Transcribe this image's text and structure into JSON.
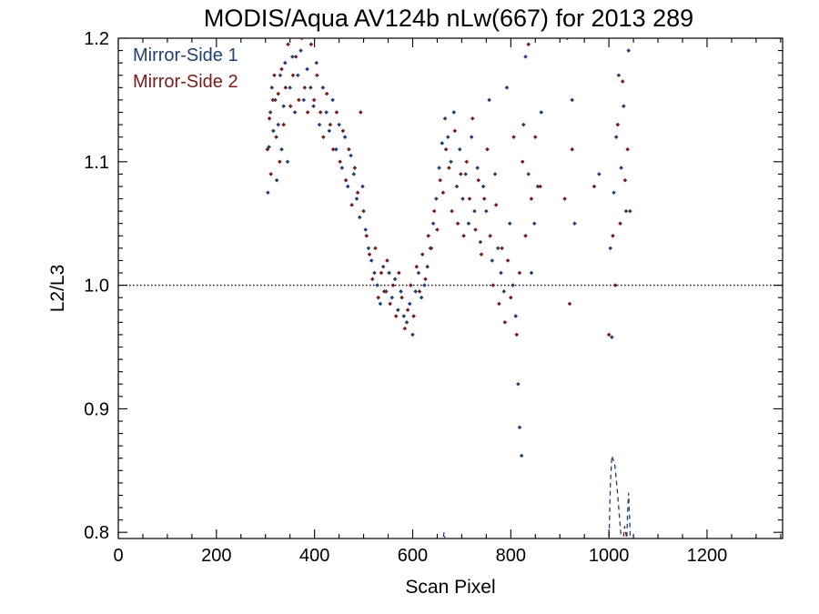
{
  "chart_data": {
    "type": "scatter",
    "title": "MODIS/Aqua AV124b nLw(667) for 2013 289",
    "xlabel": "Scan Pixel",
    "ylabel": "L2/L3",
    "xlim": [
      0,
      1354
    ],
    "ylim": [
      0.795,
      1.2
    ],
    "x_ticks": [
      0,
      200,
      400,
      600,
      800,
      1000,
      1200
    ],
    "x_tick_labels": [
      "0",
      "200",
      "400",
      "600",
      "800",
      "1000",
      "1200"
    ],
    "y_ticks": [
      0.8,
      0.9,
      1.0,
      1.1,
      1.2
    ],
    "y_tick_labels": [
      "0.8",
      "0.9",
      "1.0",
      "1.1",
      "1.2"
    ],
    "reference_line": {
      "y": 1.0,
      "style": "dotted"
    },
    "legend_position": "top-left",
    "series": [
      {
        "name": "Mirror-Side 1",
        "color": "#1f3f7a",
        "points": [
          [
            305,
            1.075
          ],
          [
            307,
            1.112
          ],
          [
            310,
            1.14
          ],
          [
            313,
            1.16
          ],
          [
            316,
            1.125
          ],
          [
            320,
            1.15
          ],
          [
            323,
            1.085
          ],
          [
            326,
            1.13
          ],
          [
            330,
            1.17
          ],
          [
            333,
            1.11
          ],
          [
            337,
            1.145
          ],
          [
            340,
            1.18
          ],
          [
            345,
            1.1
          ],
          [
            350,
            1.16
          ],
          [
            355,
            1.185
          ],
          [
            360,
            1.14
          ],
          [
            366,
            1.17
          ],
          [
            372,
            1.19
          ],
          [
            378,
            1.15
          ],
          [
            385,
            1.175
          ],
          [
            392,
            1.16
          ],
          [
            398,
            1.145
          ],
          [
            404,
            1.18
          ],
          [
            410,
            1.13
          ],
          [
            417,
            1.16
          ],
          [
            424,
            1.14
          ],
          [
            430,
            1.125
          ],
          [
            437,
            1.15
          ],
          [
            444,
            1.11
          ],
          [
            450,
            1.13
          ],
          [
            456,
            1.095
          ],
          [
            462,
            1.12
          ],
          [
            468,
            1.08
          ],
          [
            474,
            1.105
          ],
          [
            480,
            1.09
          ],
          [
            486,
            1.07
          ],
          [
            492,
            1.055
          ],
          [
            498,
            1.08
          ],
          [
            504,
            1.045
          ],
          [
            510,
            1.03
          ],
          [
            516,
            1.02
          ],
          [
            522,
            1.01
          ],
          [
            528,
            1.0
          ],
          [
            534,
            0.985
          ],
          [
            540,
            1.015
          ],
          [
            546,
            0.995
          ],
          [
            552,
            1.01
          ],
          [
            558,
            0.99
          ],
          [
            564,
            1.005
          ],
          [
            570,
            0.98
          ],
          [
            576,
            0.995
          ],
          [
            582,
            0.975
          ],
          [
            588,
            0.97
          ],
          [
            594,
            0.985
          ],
          [
            600,
            0.96
          ],
          [
            606,
            0.995
          ],
          [
            612,
            1.01
          ],
          [
            618,
            0.99
          ],
          [
            624,
            1.0
          ],
          [
            630,
            1.015
          ],
          [
            636,
            1.03
          ],
          [
            642,
            1.05
          ],
          [
            648,
            1.07
          ],
          [
            654,
            1.095
          ],
          [
            660,
            1.115
          ],
          [
            666,
            1.135
          ],
          [
            672,
            1.12
          ],
          [
            678,
            1.1
          ],
          [
            684,
            1.14
          ],
          [
            690,
            1.08
          ],
          [
            696,
            1.11
          ],
          [
            702,
            1.07
          ],
          [
            708,
            1.09
          ],
          [
            714,
            1.05
          ],
          [
            720,
            1.12
          ],
          [
            726,
            1.06
          ],
          [
            732,
            1.095
          ],
          [
            738,
            1.035
          ],
          [
            744,
            1.08
          ],
          [
            750,
            1.06
          ],
          [
            756,
            1.15
          ],
          [
            762,
            1.02
          ],
          [
            768,
            1.09
          ],
          [
            774,
            1.03
          ],
          [
            780,
            1.01
          ],
          [
            786,
            0.995
          ],
          [
            792,
            1.16
          ],
          [
            798,
            1.05
          ],
          [
            804,
            1.0
          ],
          [
            810,
            0.975
          ],
          [
            815,
            0.92
          ],
          [
            818,
            0.885
          ],
          [
            822,
            0.862
          ],
          [
            826,
            1.13
          ],
          [
            830,
            1.185
          ],
          [
            836,
            1.09
          ],
          [
            842,
            1.01
          ],
          [
            848,
            1.05
          ],
          [
            855,
            1.08
          ],
          [
            862,
            1.14
          ],
          [
            915,
            1.2
          ],
          [
            925,
            1.15
          ],
          [
            930,
            1.05
          ],
          [
            980,
            1.09
          ],
          [
            1003,
            1.03
          ],
          [
            1006,
            0.958
          ],
          [
            1010,
            1.075
          ],
          [
            1015,
            1.12
          ],
          [
            1020,
            1.17
          ],
          [
            1025,
            1.095
          ],
          [
            1030,
            1.145
          ],
          [
            1035,
            1.06
          ],
          [
            1040,
            1.19
          ]
        ]
      },
      {
        "name": "Mirror-Side 2",
        "color": "#7a1a1a",
        "points": [
          [
            304,
            1.11
          ],
          [
            308,
            1.135
          ],
          [
            311,
            1.09
          ],
          [
            315,
            1.15
          ],
          [
            318,
            1.17
          ],
          [
            322,
            1.12
          ],
          [
            326,
            1.155
          ],
          [
            329,
            1.1
          ],
          [
            333,
            1.175
          ],
          [
            337,
            1.13
          ],
          [
            341,
            1.16
          ],
          [
            346,
            1.195
          ],
          [
            351,
            1.145
          ],
          [
            356,
            1.17
          ],
          [
            362,
            1.185
          ],
          [
            368,
            1.15
          ],
          [
            374,
            1.2
          ],
          [
            380,
            1.16
          ],
          [
            386,
            1.14
          ],
          [
            393,
            1.195
          ],
          [
            399,
            1.15
          ],
          [
            405,
            1.17
          ],
          [
            412,
            1.14
          ],
          [
            418,
            1.12
          ],
          [
            425,
            1.155
          ],
          [
            432,
            1.13
          ],
          [
            438,
            1.11
          ],
          [
            445,
            1.14
          ],
          [
            452,
            1.1
          ],
          [
            458,
            1.125
          ],
          [
            464,
            1.085
          ],
          [
            470,
            1.11
          ],
          [
            476,
            1.065
          ],
          [
            482,
            1.095
          ],
          [
            488,
            1.075
          ],
          [
            494,
            1.14
          ],
          [
            500,
            1.06
          ],
          [
            506,
            1.04
          ],
          [
            512,
            1.025
          ],
          [
            518,
            1.005
          ],
          [
            524,
            1.03
          ],
          [
            530,
            0.99
          ],
          [
            536,
            1.01
          ],
          [
            542,
            0.995
          ],
          [
            548,
            1.02
          ],
          [
            554,
            0.985
          ],
          [
            560,
            1.0
          ],
          [
            566,
            0.975
          ],
          [
            572,
            1.01
          ],
          [
            578,
            0.99
          ],
          [
            584,
            0.965
          ],
          [
            590,
            0.98
          ],
          [
            596,
            1.0
          ],
          [
            602,
            0.975
          ],
          [
            608,
            1.015
          ],
          [
            614,
            0.995
          ],
          [
            620,
            1.025
          ],
          [
            626,
            1.005
          ],
          [
            632,
            1.04
          ],
          [
            638,
            1.03
          ],
          [
            644,
            1.06
          ],
          [
            650,
            1.045
          ],
          [
            656,
            1.085
          ],
          [
            662,
            1.075
          ],
          [
            668,
            1.11
          ],
          [
            674,
            1.095
          ],
          [
            680,
            1.06
          ],
          [
            686,
            1.125
          ],
          [
            692,
            1.05
          ],
          [
            698,
            1.09
          ],
          [
            704,
            1.04
          ],
          [
            710,
            1.1
          ],
          [
            716,
            1.07
          ],
          [
            722,
            1.135
          ],
          [
            728,
            1.045
          ],
          [
            734,
            1.085
          ],
          [
            740,
            1.025
          ],
          [
            746,
            1.07
          ],
          [
            752,
            1.11
          ],
          [
            758,
            1.04
          ],
          [
            764,
            1.0
          ],
          [
            770,
            1.065
          ],
          [
            776,
            0.985
          ],
          [
            782,
            1.03
          ],
          [
            788,
            0.97
          ],
          [
            794,
            1.02
          ],
          [
            800,
            0.99
          ],
          [
            806,
            1.12
          ],
          [
            812,
            0.96
          ],
          [
            818,
            1.01
          ],
          [
            824,
            1.1
          ],
          [
            830,
            1.04
          ],
          [
            836,
            1.195
          ],
          [
            842,
            1.07
          ],
          [
            850,
            1.12
          ],
          [
            860,
            1.08
          ],
          [
            910,
            1.07
          ],
          [
            920,
            0.985
          ],
          [
            925,
            1.11
          ],
          [
            970,
            1.08
          ],
          [
            1000,
            0.96
          ],
          [
            1008,
            1.04
          ],
          [
            1013,
            1.0
          ],
          [
            1018,
            1.13
          ],
          [
            1023,
            1.05
          ],
          [
            1028,
            1.165
          ],
          [
            1033,
            1.085
          ],
          [
            1038,
            1.11
          ],
          [
            1043,
            1.06
          ]
        ]
      }
    ],
    "dashed_lines": [
      {
        "series": "Mirror-Side 1",
        "color": "#1f3f7a",
        "points": [
          [
            1000,
            0.79
          ],
          [
            1003,
            0.84
          ],
          [
            1006,
            0.862
          ],
          [
            1012,
            0.855
          ],
          [
            1018,
            0.83
          ],
          [
            1024,
            0.8
          ],
          [
            1026,
            0.79
          ]
        ]
      },
      {
        "series": "Mirror-Side 1",
        "color": "#1f3f7a",
        "points": [
          [
            1036,
            0.79
          ],
          [
            1038,
            0.815
          ],
          [
            1040,
            0.832
          ],
          [
            1042,
            0.812
          ],
          [
            1044,
            0.79
          ]
        ]
      },
      {
        "series": "Mirror-Side 1",
        "color": "#1f3f7a",
        "points": [
          [
            660,
            0.79
          ],
          [
            664,
            0.8
          ],
          [
            668,
            0.79
          ]
        ]
      },
      {
        "series": "Mirror-Side 2",
        "color": "#7a1a1a",
        "points": [
          [
            1028,
            0.79
          ],
          [
            1032,
            0.805
          ],
          [
            1036,
            0.795
          ],
          [
            1038,
            0.79
          ]
        ]
      }
    ]
  }
}
